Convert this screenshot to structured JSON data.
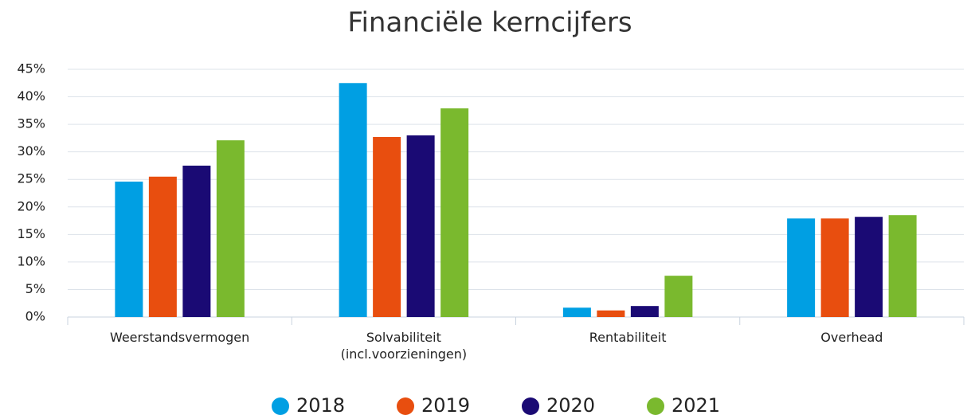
{
  "chart_data": {
    "type": "bar",
    "title": "Financiële kerncijfers",
    "categories": [
      "Weerstandsvermogen",
      "Solvabiliteit\n(incl.voorzieningen)",
      "Rentabiliteit",
      "Overhead"
    ],
    "series": [
      {
        "name": "2018",
        "color": "#009fe3",
        "values": [
          24.6,
          42.5,
          1.7,
          17.9
        ]
      },
      {
        "name": "2019",
        "color": "#e84e0f",
        "values": [
          25.5,
          32.7,
          1.2,
          17.9
        ]
      },
      {
        "name": "2020",
        "color": "#1a0a74",
        "values": [
          27.5,
          33.0,
          2.0,
          18.2
        ]
      },
      {
        "name": "2021",
        "color": "#7ab92e",
        "values": [
          32.1,
          37.9,
          7.5,
          18.5
        ]
      }
    ],
    "ylim": [
      0,
      45
    ],
    "yticks": [
      {
        "value": 0,
        "label": "0%"
      },
      {
        "value": 5,
        "label": "5%"
      },
      {
        "value": 10,
        "label": "10%"
      },
      {
        "value": 15,
        "label": "15%"
      },
      {
        "value": 20,
        "label": "20%"
      },
      {
        "value": 25,
        "label": "25%"
      },
      {
        "value": 30,
        "label": "30%"
      },
      {
        "value": 35,
        "label": "35%"
      },
      {
        "value": 40,
        "label": "40%"
      },
      {
        "value": 45,
        "label": "45%"
      }
    ],
    "grid": true,
    "legend": "bottom"
  }
}
